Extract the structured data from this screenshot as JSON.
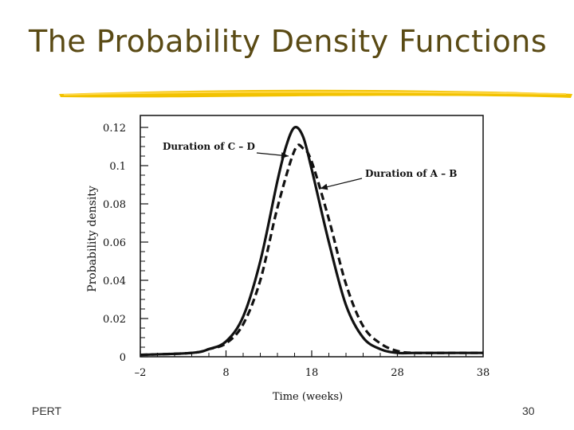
{
  "slide": {
    "title": "The Probability Density Functions",
    "footer_left": "PERT",
    "page_number": "30"
  },
  "colors": {
    "title": "#5a4a14",
    "underline": "#f2c200",
    "curve": "#111111"
  },
  "chart_data": {
    "type": "line",
    "title": "",
    "xlabel": "Time (weeks)",
    "ylabel": "Probability density",
    "xlim": [
      -2,
      38
    ],
    "ylim": [
      0,
      0.12
    ],
    "x_ticks": [
      -2,
      8,
      18,
      28,
      38
    ],
    "x_tick_labels": [
      "–2",
      "8",
      "18",
      "28",
      "38"
    ],
    "y_ticks": [
      0,
      0.02,
      0.04,
      0.06,
      0.08,
      0.1,
      0.12
    ],
    "y_tick_labels": [
      "0",
      "0.02",
      "0.04",
      "0.06",
      "0.08",
      "0.1",
      "0.12"
    ],
    "grid": false,
    "series": [
      {
        "name": "Duration of C – D",
        "style": "solid",
        "x": [
          -2,
          4,
          6,
          8,
          10,
          12,
          14,
          15,
          16,
          17,
          18,
          20,
          22,
          24,
          26,
          28,
          30,
          34,
          38
        ],
        "y": [
          0.001,
          0.002,
          0.004,
          0.008,
          0.021,
          0.05,
          0.092,
          0.11,
          0.12,
          0.115,
          0.098,
          0.06,
          0.027,
          0.01,
          0.004,
          0.002,
          0.002,
          0.002,
          0.002
        ]
      },
      {
        "name": "Duration of A – B",
        "style": "dashed",
        "x": [
          -2,
          4,
          6,
          8,
          10,
          12,
          14,
          16,
          17,
          18,
          20,
          22,
          24,
          26,
          28,
          30,
          34,
          38
        ],
        "y": [
          0.001,
          0.002,
          0.004,
          0.007,
          0.017,
          0.04,
          0.078,
          0.108,
          0.109,
          0.102,
          0.072,
          0.038,
          0.016,
          0.007,
          0.003,
          0.002,
          0.002,
          0.002
        ]
      }
    ],
    "annotations": [
      {
        "text": "Duration of C – D",
        "series": 0,
        "point_x": 15.3,
        "point_y": 0.105
      },
      {
        "text": "Duration of A – B",
        "series": 1,
        "point_x": 19.0,
        "point_y": 0.088
      }
    ]
  }
}
